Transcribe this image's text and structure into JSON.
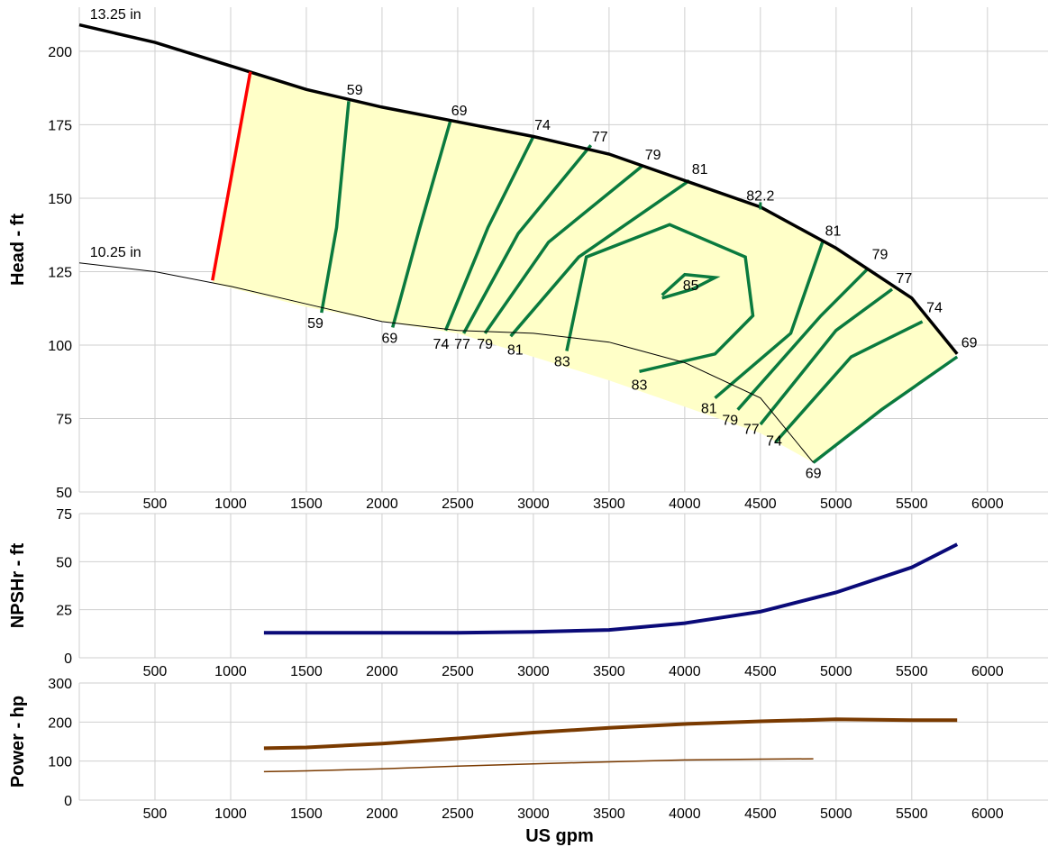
{
  "chart_data": {
    "type": "line",
    "xlabel": "US gpm",
    "x_ticks": [
      500,
      1000,
      1500,
      2000,
      2500,
      3000,
      3500,
      4000,
      4500,
      5000,
      5500,
      6000
    ],
    "xlim": [
      0,
      6400
    ],
    "grid": true,
    "colors": {
      "impeller": "#000000",
      "efficiency": "#0a7a3e",
      "min_flow": "#ff0000",
      "fill": "#ffffc8",
      "npsh": "#0a0a78",
      "power": "#7a3a00"
    },
    "panels": [
      {
        "name": "head",
        "ylabel": "Head - ft",
        "ylim": [
          50,
          215
        ],
        "y_ticks": [
          50,
          75,
          100,
          125,
          150,
          175,
          200
        ],
        "impeller_curves": [
          {
            "label": "13.25 in",
            "points": [
              [
                0,
                209
              ],
              [
                500,
                203
              ],
              [
                1000,
                195
              ],
              [
                1500,
                187
              ],
              [
                2000,
                181
              ],
              [
                2500,
                176
              ],
              [
                3000,
                171
              ],
              [
                3500,
                165
              ],
              [
                4000,
                156
              ],
              [
                4500,
                147
              ],
              [
                5000,
                133
              ],
              [
                5500,
                116
              ],
              [
                5800,
                97
              ]
            ]
          },
          {
            "label": "10.25 in",
            "points": [
              [
                0,
                128
              ],
              [
                500,
                125
              ],
              [
                1000,
                120
              ],
              [
                1500,
                114
              ],
              [
                2000,
                108
              ],
              [
                2500,
                105
              ],
              [
                3000,
                104
              ],
              [
                3500,
                101
              ],
              [
                4000,
                94
              ],
              [
                4500,
                82
              ],
              [
                4850,
                60
              ]
            ]
          }
        ],
        "operating_region_lower": [
          [
            880,
            121
          ],
          [
            1500,
            113
          ],
          [
            2000,
            108
          ],
          [
            2500,
            104
          ],
          [
            3000,
            96
          ],
          [
            3500,
            88
          ],
          [
            4000,
            79
          ],
          [
            4500,
            70
          ],
          [
            4850,
            60
          ]
        ],
        "min_flow_line": [
          [
            880,
            122
          ],
          [
            1130,
            193
          ]
        ],
        "efficiency_curves": [
          {
            "label": "59",
            "points": [
              [
                1600,
                111
              ],
              [
                1700,
                140
              ],
              [
                1780,
                183
              ]
            ]
          },
          {
            "label": "69",
            "points": [
              [
                2070,
                106
              ],
              [
                2250,
                140
              ],
              [
                2450,
                176
              ]
            ]
          },
          {
            "label": "74",
            "points": [
              [
                2420,
                105
              ],
              [
                2700,
                140
              ],
              [
                3000,
                171
              ]
            ]
          },
          {
            "label": "77",
            "points": [
              [
                2540,
                104
              ],
              [
                2900,
                138
              ],
              [
                3380,
                168
              ]
            ]
          },
          {
            "label": "79",
            "points": [
              [
                2680,
                104
              ],
              [
                3100,
                135
              ],
              [
                3720,
                161
              ]
            ]
          },
          {
            "label": "81",
            "points": [
              [
                2850,
                103
              ],
              [
                3300,
                130
              ],
              [
                4030,
                156
              ]
            ]
          },
          {
            "label": "83",
            "points": [
              [
                3220,
                98
              ],
              [
                3350,
                130
              ],
              [
                3900,
                141
              ],
              [
                4400,
                130
              ],
              [
                4450,
                110
              ],
              [
                4200,
                97
              ],
              [
                3700,
                91
              ]
            ],
            "label2": "83"
          },
          {
            "label": "85",
            "points": [
              [
                3850,
                117
              ],
              [
                4000,
                124
              ],
              [
                4200,
                123
              ],
              [
                4050,
                119
              ],
              [
                3850,
                116
              ]
            ]
          },
          {
            "label": "81",
            "points": [
              [
                4200,
                82
              ],
              [
                4700,
                104
              ],
              [
                4910,
                135
              ]
            ]
          },
          {
            "label": "79",
            "points": [
              [
                4350,
                78
              ],
              [
                4900,
                110
              ],
              [
                5210,
                126
              ]
            ]
          },
          {
            "label": "77",
            "points": [
              [
                4500,
                73
              ],
              [
                5000,
                105
              ],
              [
                5370,
                119
              ]
            ]
          },
          {
            "label": "74",
            "points": [
              [
                4600,
                67
              ],
              [
                5100,
                96
              ],
              [
                5570,
                108
              ]
            ]
          },
          {
            "label": "69",
            "points": [
              [
                4850,
                60
              ],
              [
                5300,
                78
              ],
              [
                5800,
                96
              ]
            ]
          }
        ],
        "bep_label": "82.2",
        "bep_marker": {
          "x": 4500,
          "y": 148
        }
      },
      {
        "name": "npsh",
        "ylabel": "NPSHr - ft",
        "ylim": [
          0,
          75
        ],
        "y_ticks": [
          0,
          25,
          50,
          75
        ],
        "series": [
          {
            "points": [
              [
                1220,
                13
              ],
              [
                1500,
                13
              ],
              [
                2000,
                13
              ],
              [
                2500,
                13
              ],
              [
                3000,
                13.5
              ],
              [
                3500,
                14.5
              ],
              [
                4000,
                18
              ],
              [
                4500,
                24
              ],
              [
                5000,
                34
              ],
              [
                5500,
                47
              ],
              [
                5800,
                59
              ]
            ]
          }
        ]
      },
      {
        "name": "power",
        "ylabel": "Power - hp",
        "ylim": [
          0,
          300
        ],
        "y_ticks": [
          0,
          100,
          200,
          300
        ],
        "series": [
          {
            "points": [
              [
                1220,
                133
              ],
              [
                1500,
                135
              ],
              [
                2000,
                145
              ],
              [
                2500,
                158
              ],
              [
                3000,
                173
              ],
              [
                3500,
                185
              ],
              [
                4000,
                195
              ],
              [
                4500,
                202
              ],
              [
                5000,
                207
              ],
              [
                5500,
                205
              ],
              [
                5800,
                205
              ]
            ]
          },
          {
            "points": [
              [
                1220,
                73
              ],
              [
                1500,
                75
              ],
              [
                2000,
                80
              ],
              [
                2500,
                87
              ],
              [
                3000,
                93
              ],
              [
                3500,
                98
              ],
              [
                4000,
                103
              ],
              [
                4500,
                105
              ],
              [
                4850,
                106
              ]
            ]
          }
        ]
      }
    ]
  }
}
